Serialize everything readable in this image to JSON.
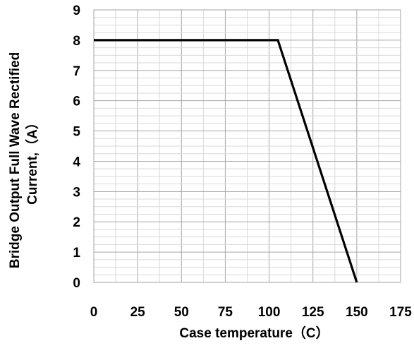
{
  "chart_data": {
    "type": "line",
    "title": "",
    "xlabel": "Case temperature（C）",
    "ylabel_line1": "Bridge Output Full Wave Rectified",
    "ylabel_line2": "Current,（A）",
    "xlim": [
      0,
      175
    ],
    "ylim": [
      0,
      9
    ],
    "x_ticks": [
      0,
      25,
      50,
      75,
      100,
      125,
      150,
      175
    ],
    "y_ticks": [
      0,
      1,
      2,
      3,
      4,
      5,
      6,
      7,
      8,
      9
    ],
    "x_tick_labels": [
      "0",
      "25",
      "50",
      "75",
      "100",
      "125",
      "150",
      "175"
    ],
    "y_tick_labels": [
      "0",
      "1",
      "2",
      "3",
      "4",
      "5",
      "6",
      "7",
      "8",
      "9"
    ],
    "grid": true,
    "series": [
      {
        "x": [
          0,
          105,
          150
        ],
        "y": [
          8,
          8,
          0
        ]
      }
    ],
    "line_color": "#000000"
  }
}
